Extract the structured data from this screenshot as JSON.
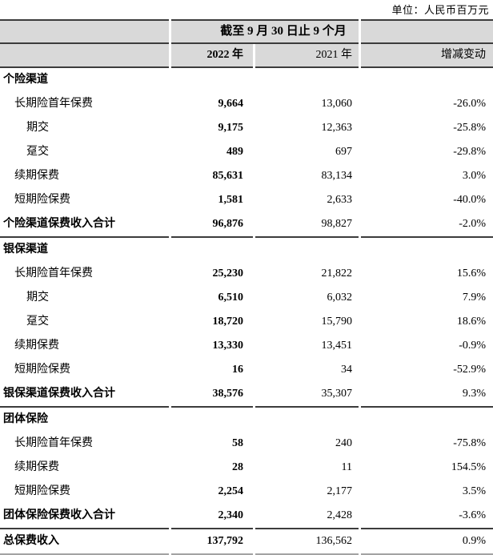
{
  "unit_label": "单位：人民币百万元",
  "colors": {
    "header_bg": "#d9d9d9",
    "line_dark": "#3c3c3c",
    "line_light": "#a3a3a3"
  },
  "table": {
    "period_header": "截至 9 月 30 日止 9 个月",
    "col_2022": "2022 年",
    "col_2021": "2021 年",
    "col_change": "增减变动",
    "sections": [
      {
        "title": "个险渠道",
        "divider": false,
        "rows": [
          {
            "label": "长期险首年保费",
            "indent": 1,
            "bold": false,
            "v2022": "9,664",
            "v2021": "13,060",
            "change": "-26.0%"
          },
          {
            "label": "期交",
            "indent": 2,
            "bold": false,
            "v2022": "9,175",
            "v2021": "12,363",
            "change": "-25.8%"
          },
          {
            "label": "趸交",
            "indent": 2,
            "bold": false,
            "v2022": "489",
            "v2021": "697",
            "change": "-29.8%"
          },
          {
            "label": "续期保费",
            "indent": 1,
            "bold": false,
            "v2022": "85,631",
            "v2021": "83,134",
            "change": "3.0%"
          },
          {
            "label": "短期险保费",
            "indent": 1,
            "bold": false,
            "v2022": "1,581",
            "v2021": "2,633",
            "change": "-40.0%"
          },
          {
            "label": "个险渠道保费收入合计",
            "indent": 0,
            "bold": true,
            "v2022": "96,876",
            "v2021": "98,827",
            "change": "-2.0%"
          }
        ]
      },
      {
        "title": "银保渠道",
        "divider": true,
        "rows": [
          {
            "label": "长期险首年保费",
            "indent": 1,
            "bold": false,
            "v2022": "25,230",
            "v2021": "21,822",
            "change": "15.6%"
          },
          {
            "label": "期交",
            "indent": 2,
            "bold": false,
            "v2022": "6,510",
            "v2021": "6,032",
            "change": "7.9%"
          },
          {
            "label": "趸交",
            "indent": 2,
            "bold": false,
            "v2022": "18,720",
            "v2021": "15,790",
            "change": "18.6%"
          },
          {
            "label": "续期保费",
            "indent": 1,
            "bold": false,
            "v2022": "13,330",
            "v2021": "13,451",
            "change": "-0.9%"
          },
          {
            "label": "短期险保费",
            "indent": 1,
            "bold": false,
            "v2022": "16",
            "v2021": "34",
            "change": "-52.9%"
          },
          {
            "label": "银保渠道保费收入合计",
            "indent": 0,
            "bold": true,
            "v2022": "38,576",
            "v2021": "35,307",
            "change": "9.3%"
          }
        ]
      },
      {
        "title": "团体保险",
        "divider": true,
        "rows": [
          {
            "label": "长期险首年保费",
            "indent": 1,
            "bold": false,
            "v2022": "58",
            "v2021": "240",
            "change": "-75.8%"
          },
          {
            "label": "续期保费",
            "indent": 1,
            "bold": false,
            "v2022": "28",
            "v2021": "11",
            "change": "154.5%"
          },
          {
            "label": "短期险保费",
            "indent": 1,
            "bold": false,
            "v2022": "2,254",
            "v2021": "2,177",
            "change": "3.5%"
          },
          {
            "label": "团体保险保费收入合计",
            "indent": 0,
            "bold": true,
            "v2022": "2,340",
            "v2021": "2,428",
            "change": "-3.6%"
          }
        ]
      }
    ],
    "total_row": {
      "label": "总保费收入",
      "v2022": "137,792",
      "v2021": "136,562",
      "change": "0.9%"
    }
  }
}
